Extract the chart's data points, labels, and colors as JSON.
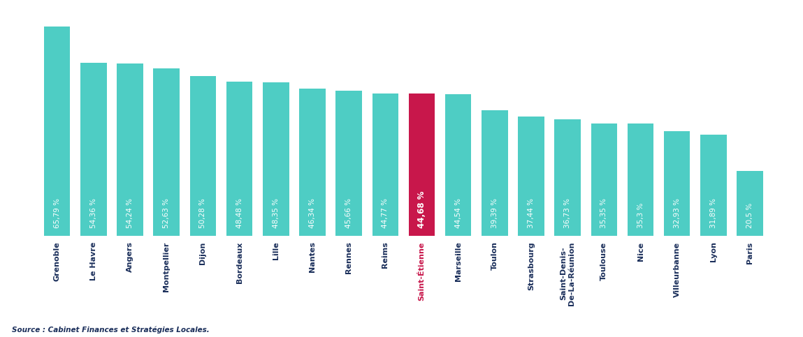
{
  "categories": [
    "Grenoble",
    "Le Havre",
    "Angers",
    "Montpellier",
    "Dijon",
    "Bordeaux",
    "Lille",
    "Nantes",
    "Rennes",
    "Reims",
    "Saint-Étienne",
    "Marseille",
    "Toulon",
    "Strasbourg",
    "Saint-Denis-\nDe-La-Réunion",
    "Toulouse",
    "Nice",
    "Villeurbanne",
    "Lyon",
    "Paris"
  ],
  "values": [
    65.79,
    54.36,
    54.24,
    52.63,
    50.28,
    48.48,
    48.35,
    46.34,
    45.66,
    44.77,
    44.68,
    44.54,
    39.39,
    37.44,
    36.73,
    35.35,
    35.3,
    32.93,
    31.89,
    20.5
  ],
  "labels": [
    "65,79 %",
    "54,36 %",
    "54,24 %",
    "52,63 %",
    "50,28 %",
    "48,48 %",
    "48,35 %",
    "46,34 %",
    "45,66 %",
    "44,77 %",
    "44,68 %",
    "44,54 %",
    "39,39 %",
    "37,44 %",
    "36,73 %",
    "35,35 %",
    "35,3 %",
    "32,93 %",
    "31,89 %",
    "20,5 %"
  ],
  "highlight_index": 10,
  "bar_color": "#4ECDC4",
  "highlight_color": "#C8174B",
  "text_color": "#FFFFFF",
  "highlight_text_color": "#FFFFFF",
  "xlabel_color_normal": "#1A2E5A",
  "xlabel_color_highlight": "#C8174B",
  "source_text": "Source : Cabinet Finances et Stratégies Locales.",
  "background_color": "#FFFFFF",
  "ylim": [
    0,
    72
  ]
}
